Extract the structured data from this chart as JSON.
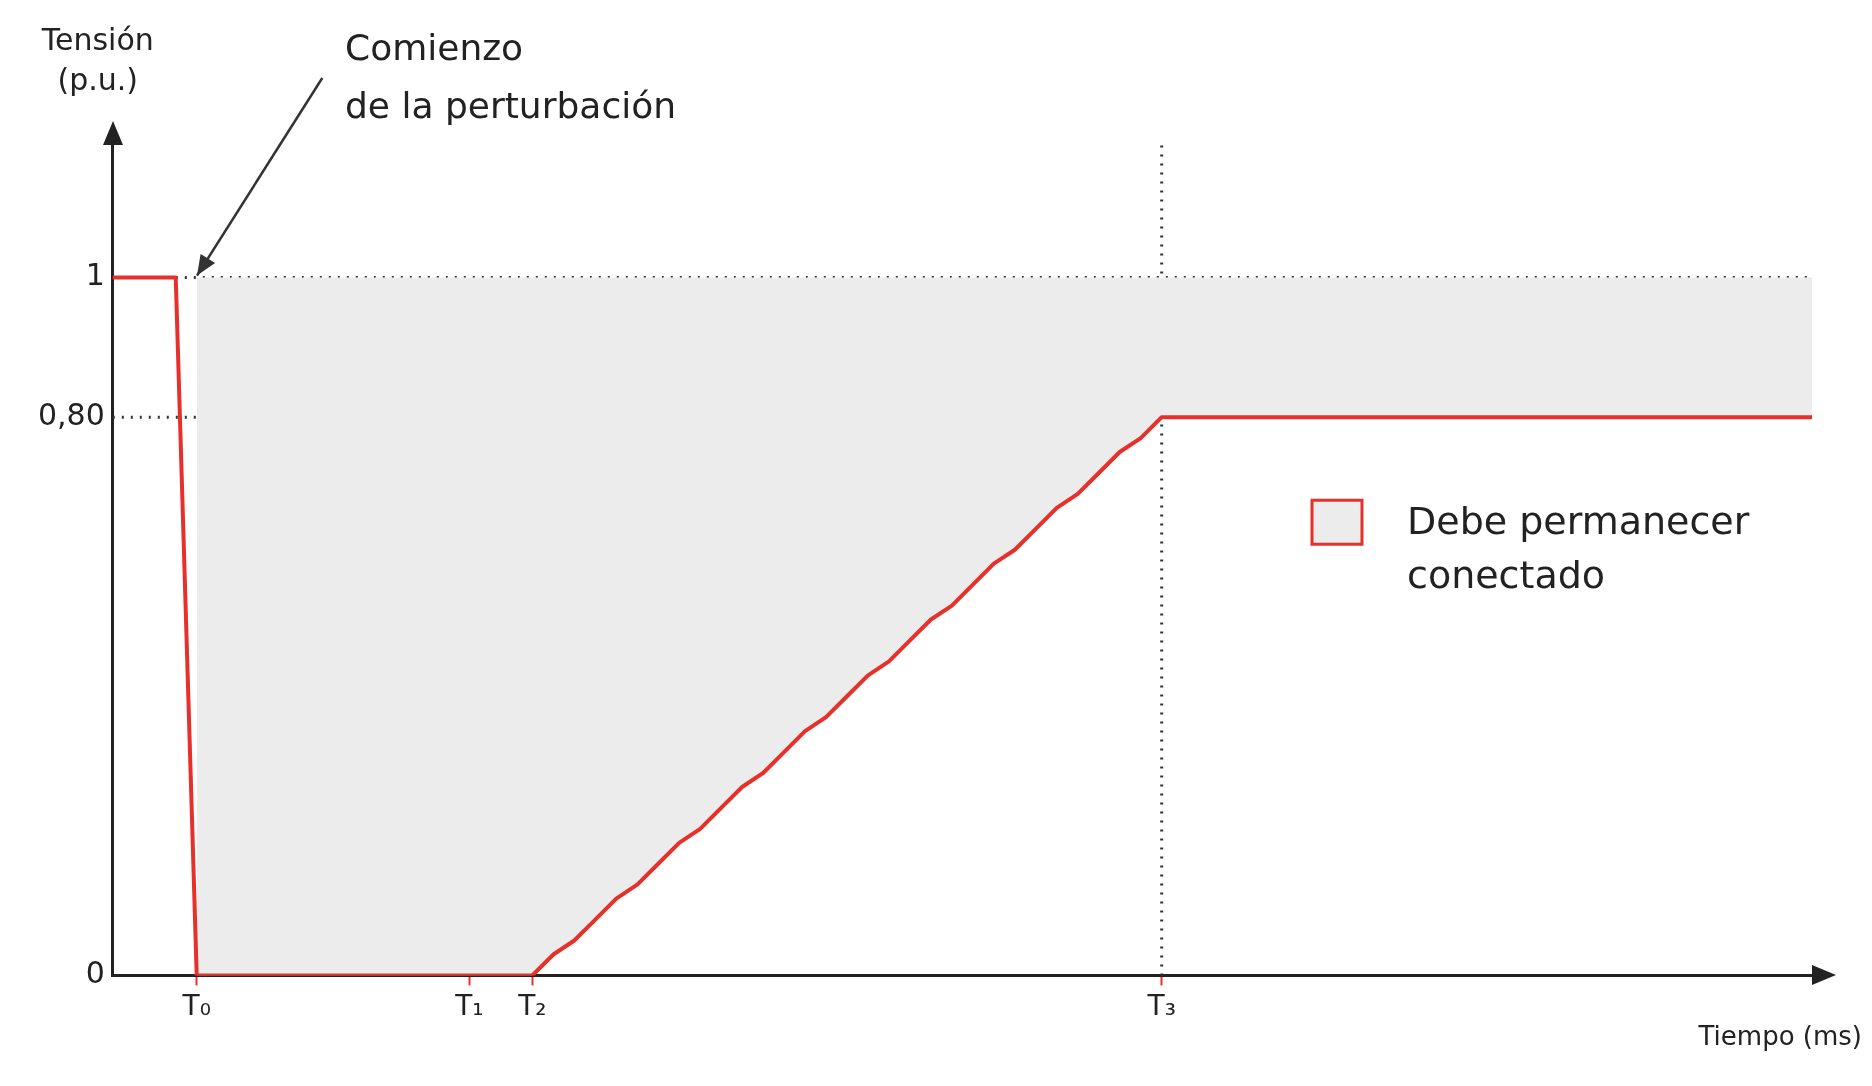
{
  "chart_data": {
    "type": "line",
    "xlabel": "Tiempo (ms)",
    "ylabel": "Tensión (p.u.)",
    "categories": [
      null,
      null,
      null,
      null,
      "T₀",
      null,
      null,
      null,
      null,
      null,
      null,
      null,
      null,
      null,
      null,
      null,
      null,
      "T₁",
      null,
      null,
      "T₂",
      null,
      null,
      null,
      null,
      null,
      null,
      null,
      null,
      null,
      null,
      null,
      null,
      null,
      null,
      null,
      null,
      null,
      null,
      null,
      null,
      null,
      null,
      null,
      null,
      null,
      null,
      null,
      null,
      null,
      "T₃",
      null,
      null,
      null,
      null,
      null,
      null,
      null,
      null,
      null,
      null,
      null,
      null,
      null,
      null,
      null,
      null,
      null,
      null,
      null,
      null,
      null,
      null,
      null,
      null,
      null,
      null,
      null,
      null,
      null,
      null,
      null
    ],
    "ylim": [
      0,
      1.19
    ],
    "yticks": [
      0,
      {
        "value": 0.8,
        "label": "0,80"
      },
      1
    ],
    "grid": false,
    "legend": "right",
    "marker": "none",
    "line_style": "solid",
    "series": [
      {
        "type": "area",
        "name": "Debe permanecer conectado",
        "color": "#ececec",
        "values": [
          null,
          null,
          null,
          null,
          1,
          1,
          1,
          1,
          1,
          1,
          1,
          1,
          1,
          1,
          1,
          1,
          1,
          1,
          1,
          1,
          1,
          1,
          1,
          1,
          1,
          1,
          1,
          1,
          1,
          1,
          1,
          1,
          1,
          1,
          1,
          1,
          1,
          1,
          1,
          1,
          1,
          1,
          1,
          1,
          1,
          1,
          1,
          1,
          1,
          1,
          1,
          1,
          1,
          1,
          1,
          1,
          1,
          1,
          1,
          1,
          1,
          1,
          1,
          1,
          1,
          1,
          1,
          1,
          1,
          1,
          1,
          1,
          1,
          1,
          1,
          1,
          1,
          1,
          1,
          1,
          1,
          1
        ]
      },
      {
        "color": "#e8302a",
        "values": [
          1,
          1,
          1,
          1,
          0,
          0,
          0,
          0,
          0,
          0,
          0,
          0,
          0,
          0,
          0,
          0,
          0,
          0,
          0,
          0,
          0,
          0.03,
          0.05,
          0.08,
          0.11,
          0.13,
          0.16,
          0.19,
          0.21,
          0.24,
          0.27,
          0.29,
          0.32,
          0.35,
          0.37,
          0.4,
          0.43,
          0.45,
          0.48,
          0.51,
          0.53,
          0.56,
          0.59,
          0.61,
          0.64,
          0.67,
          0.69,
          0.72,
          0.75,
          0.77,
          0.8,
          0.8,
          0.8,
          0.8,
          0.8,
          0.8,
          0.8,
          0.8,
          0.8,
          0.8,
          0.8,
          0.8,
          0.8,
          0.8,
          0.8,
          0.8,
          0.8,
          0.8,
          0.8,
          0.8,
          0.8,
          0.8,
          0.8,
          0.8,
          0.8,
          0.8,
          0.8,
          0.8,
          0.8,
          0.8,
          0.8,
          0.8
        ]
      }
    ],
    "ref_lines": [
      {
        "axis": "y",
        "value": 1,
        "line_style": "dotted",
        "color": "#333333"
      },
      {
        "axis": "y",
        "value": 0.8,
        "line_style": "dotted",
        "color": "#333333"
      },
      {
        "axis": "x",
        "value": "T₃",
        "line_style": "dotted",
        "color": "#333333"
      }
    ],
    "annotations": [
      {
        "text": "Comienzo\nde la perturbación",
        "x": "T₀",
        "y": 1
      }
    ]
  }
}
